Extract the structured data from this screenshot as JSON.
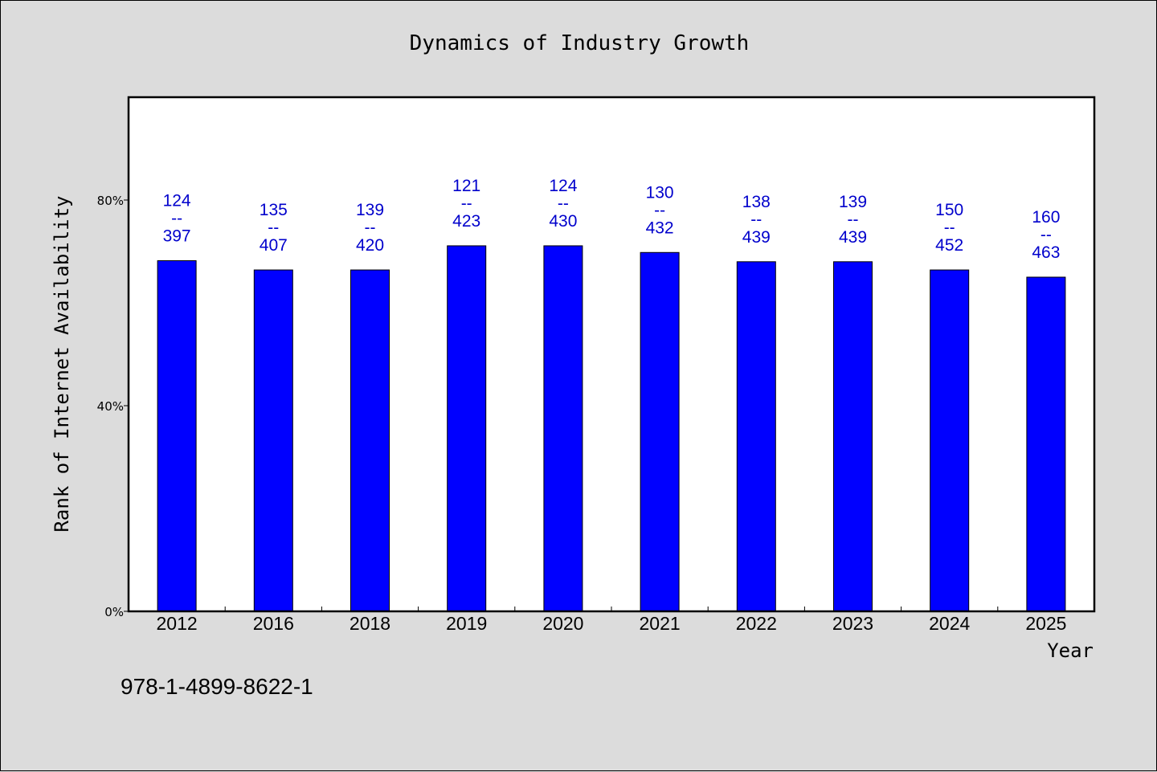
{
  "chart_data": {
    "type": "bar",
    "title": "Dynamics of Industry Growth",
    "xlabel": "Year",
    "ylabel": "Rank of Internet Availability",
    "categories": [
      "2012",
      "2016",
      "2018",
      "2019",
      "2020",
      "2021",
      "2022",
      "2023",
      "2024",
      "2025"
    ],
    "values": [
      68.2,
      66.4,
      66.4,
      71.1,
      71.1,
      69.8,
      68.0,
      68.0,
      66.4,
      65.0
    ],
    "labels_top": [
      "124",
      "135",
      "139",
      "121",
      "124",
      "130",
      "138",
      "139",
      "150",
      "160"
    ],
    "labels_sep": "--",
    "labels_bottom": [
      "397",
      "407",
      "420",
      "423",
      "430",
      "432",
      "439",
      "439",
      "452",
      "463"
    ],
    "yticks": [
      0,
      40,
      80
    ],
    "ytick_labels": [
      "0%",
      "40%",
      "80%"
    ],
    "ylim": [
      0,
      100
    ],
    "grid": false,
    "bar_color": "#0000ff",
    "label_color": "#0000cc",
    "plot_background": "#ffffff",
    "figure_background": "#dcdcdc"
  },
  "footnote": "978-1-4899-8622-1"
}
